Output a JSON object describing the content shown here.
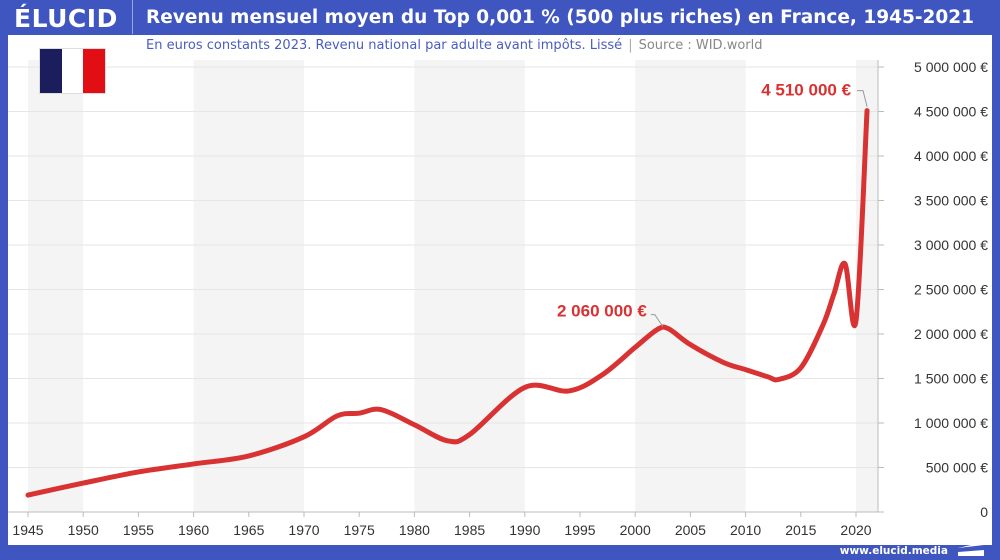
{
  "header": {
    "logo": "ÉLUCID",
    "title": "Revenu mensuel moyen du Top 0,001 % (500 plus riches) en France, 1945-2021"
  },
  "subtitle": {
    "text": "En euros constants 2023. Revenu national par adulte avant impôts. Lissé",
    "separator": "|",
    "source": "Source : WID.world"
  },
  "footer": {
    "url": "www.elucid.media"
  },
  "flag": {
    "colors": [
      "#1b1d5c",
      "#ffffff",
      "#e10f14"
    ]
  },
  "colors": {
    "frame": "#3f56c0",
    "line": "#d83232",
    "band": "#f4f4f4",
    "grid": "#e6e6e6"
  },
  "chart_data": {
    "type": "line",
    "title": "Revenu mensuel moyen du Top 0,001 % (500 plus riches) en France, 1945-2021",
    "xlim": [
      1945,
      2022
    ],
    "ylim": [
      0,
      5000000
    ],
    "grid": true,
    "x_ticks": [
      "1945",
      "1950",
      "1955",
      "1960",
      "1965",
      "1970",
      "1975",
      "1980",
      "1985",
      "1990",
      "1995",
      "2000",
      "2005",
      "2010",
      "2015",
      "2020"
    ],
    "y_ticks": [
      {
        "v": 0,
        "label": "0"
      },
      {
        "v": 500000,
        "label": "500 000 €"
      },
      {
        "v": 1000000,
        "label": "1 000 000 €"
      },
      {
        "v": 1500000,
        "label": "1 500 000 €"
      },
      {
        "v": 2000000,
        "label": "2 000 000 €"
      },
      {
        "v": 2500000,
        "label": "2 500 000 €"
      },
      {
        "v": 3000000,
        "label": "3 000 000 €"
      },
      {
        "v": 3500000,
        "label": "3 500 000 €"
      },
      {
        "v": 4000000,
        "label": "4 000 000 €"
      },
      {
        "v": 4500000,
        "label": "4 500 000 €"
      },
      {
        "v": 5000000,
        "label": "5 000 000 €"
      }
    ],
    "shaded_periods": [
      [
        1945,
        1950
      ],
      [
        1960,
        1970
      ],
      [
        1980,
        1990
      ],
      [
        2000,
        2010
      ],
      [
        2020,
        2022
      ]
    ],
    "series": [
      {
        "x": [
          1945,
          1950,
          1955,
          1960,
          1965,
          1970,
          1973,
          1975,
          1977,
          1980,
          1983,
          1985,
          1990,
          1994,
          1997,
          2000,
          2002,
          2003,
          2005,
          2008,
          2010,
          2012,
          2013,
          2015,
          2017,
          2018,
          2019,
          2020,
          2021
        ],
        "y": [
          190000,
          325000,
          450000,
          540000,
          630000,
          845000,
          1080000,
          1110000,
          1150000,
          980000,
          800000,
          870000,
          1400000,
          1360000,
          1540000,
          1850000,
          2050000,
          2060000,
          1880000,
          1680000,
          1600000,
          1520000,
          1490000,
          1620000,
          2100000,
          2450000,
          2790000,
          2150000,
          4510000
        ]
      }
    ],
    "annotations": [
      {
        "x": 2002.5,
        "y": 2060000,
        "label": "2 060 000 €"
      },
      {
        "x": 2021,
        "y": 4510000,
        "label": "4 510 000 €"
      }
    ]
  }
}
